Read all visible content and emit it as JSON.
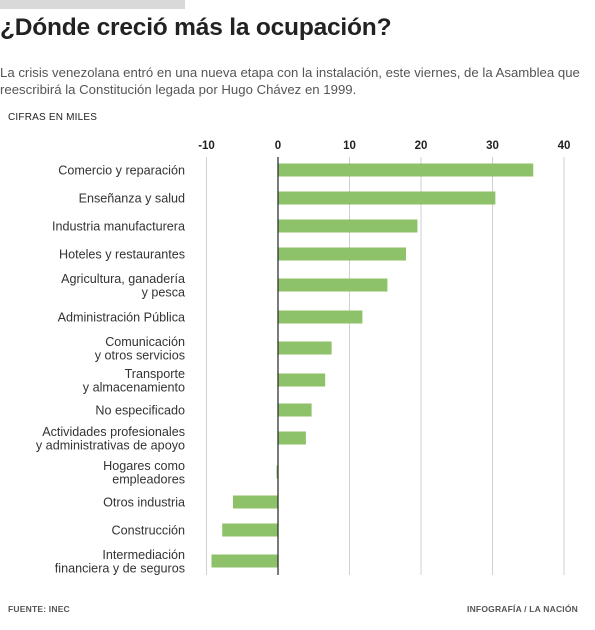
{
  "header": {
    "title": "¿Dónde creció más la ocupación?",
    "subtitle": "La crisis venezolana entró en una nueva etapa con la instalación, este viernes, de la Asamblea que reescribirá la Constitución legada por Hugo Chávez en 1999.",
    "unit_label": "CIFRAS EN MILES"
  },
  "footer": {
    "source": "FUENTE: INEC",
    "credit": "INFOGRAFÍA / LA NACIÓN"
  },
  "colors": {
    "bar": "#8dc26a",
    "grid": "#d0d0d0",
    "zero_line": "#222222"
  },
  "chart_data": {
    "type": "bar",
    "orientation": "horizontal",
    "categories": [
      [
        "Comercio y reparación"
      ],
      [
        "Enseñanza y salud"
      ],
      [
        "Industria manufacturera"
      ],
      [
        "Hoteles y restaurantes"
      ],
      [
        "Agricultura, ganadería",
        "y pesca"
      ],
      [
        "Administración Pública"
      ],
      [
        "Comunicación",
        "y otros servicios"
      ],
      [
        "Transporte",
        "y almacenamiento"
      ],
      [
        "No especificado"
      ],
      [
        "Actividades profesionales",
        "y administrativas de apoyo"
      ],
      [
        "Hogares como",
        "empleadores"
      ],
      [
        "Otros industria"
      ],
      [
        "Construcción"
      ],
      [
        "Intermediación",
        "financiera y de seguros"
      ]
    ],
    "values": [
      35.7,
      30.4,
      19.5,
      17.9,
      15.3,
      11.8,
      7.5,
      6.6,
      4.7,
      3.9,
      -0.2,
      -6.3,
      -7.8,
      -9.3
    ],
    "xlim": [
      -11,
      42
    ],
    "xticks": [
      -10,
      0,
      10,
      20,
      30,
      40
    ],
    "xtick_labels": [
      "-10",
      "0",
      "10",
      "20",
      "30",
      "40"
    ],
    "grid": true,
    "legend": false
  }
}
